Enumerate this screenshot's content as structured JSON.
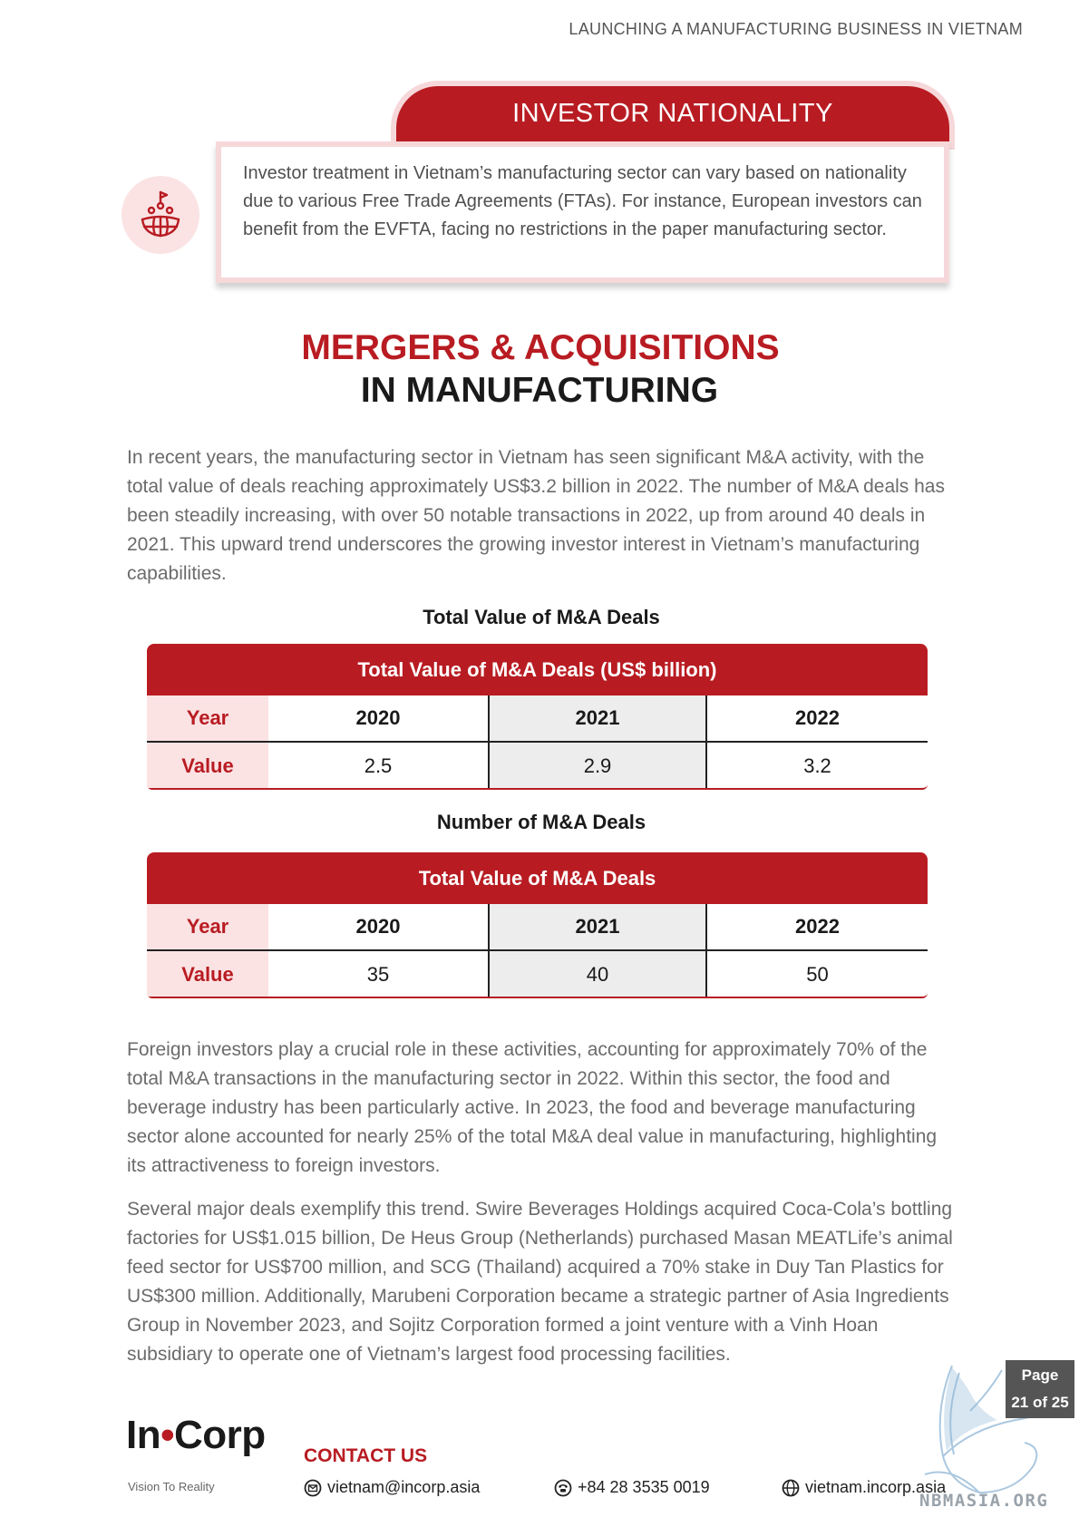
{
  "header": {
    "title": "LAUNCHING A MANUFACTURING BUSINESS IN VIETNAM"
  },
  "investor": {
    "title": "INVESTOR NATIONALITY",
    "text": "Investor treatment in Vietnam’s manufacturing sector can vary based on nationality due to various Free Trade Agreements (FTAs). For instance, European investors can benefit from the EVFTA, facing no restrictions in the paper manufacturing sector.",
    "icon": "globe-people-flag-icon"
  },
  "ma": {
    "title_line1": "MERGERS & ACQUISITIONS",
    "title_line2": "IN MANUFACTURING",
    "para1": "In recent years, the manufacturing sector in Vietnam has seen significant M&A activity, with the total value of deals reaching approximately US$3.2 billion in 2022. The number of M&A deals has been steadily increasing, with over 50 notable transactions in 2022, up from around 40 deals in 2021. This upward trend underscores the growing investor interest in Vietnam’s manufacturing capabilities.",
    "para2": "Foreign investors play a crucial role in these activities, accounting for approximately 70% of the total M&A transactions in the manufacturing sector in 2022. Within this sector, the food and beverage industry has been particularly active. In 2023, the food and beverage manufacturing sector alone accounted for nearly 25% of the total M&A deal value in manufacturing, highlighting its attractiveness to foreign investors.",
    "para3": "Several major deals exemplify this trend. Swire Beverages Holdings acquired Coca-Cola’s bottling factories for US$1.015 billion, De Heus Group (Netherlands) purchased Masan MEATLife’s animal feed sector for US$700 million, and SCG (Thailand) acquired a 70% stake in Duy Tan Plastics for US$300 million. Additionally, Marubeni Corporation became a strategic partner of Asia Ingredients Group in November 2023, and Sojitz Corporation formed a joint venture with a Vinh Hoan subsidiary to operate one of Vietnam’s largest food processing facilities."
  },
  "table1": {
    "caption": "Total Value of M&A Deals",
    "header": "Total Value of M&A Deals (US$ billion)",
    "row_labels": [
      "Year",
      "Value"
    ],
    "years": [
      "2020",
      "2021",
      "2022"
    ],
    "values": [
      "2.5",
      "2.9",
      "3.2"
    ]
  },
  "table2": {
    "caption": "Number of M&A Deals",
    "header": "Total Value of M&A Deals",
    "row_labels": [
      "Year",
      "Value"
    ],
    "years": [
      "2020",
      "2021",
      "2022"
    ],
    "values": [
      "35",
      "40",
      "50"
    ]
  },
  "footer": {
    "logo_left": "In",
    "logo_dot": "•",
    "logo_right": "Corp",
    "logo_tagline": "Vision To Reality",
    "contact_title": "CONTACT US",
    "email": "vietnam@incorp.asia",
    "phone": "+84 28 3535 0019",
    "website": "vietnam.incorp.asia"
  },
  "page": {
    "label": "Page",
    "number": "21 of 25"
  },
  "watermark": {
    "text": "NBMASIA.ORG"
  },
  "colors": {
    "accent": "#b81c22",
    "accent_light": "#fbe3e4",
    "text_gray": "#6b6b6b"
  }
}
